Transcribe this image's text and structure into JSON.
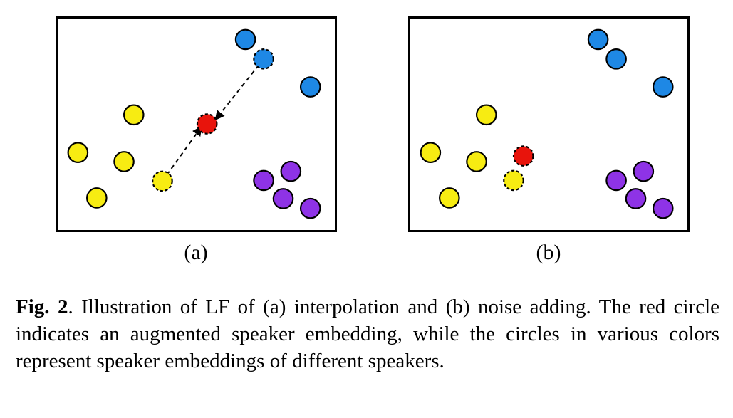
{
  "figure": {
    "panel_a_label": "(a)",
    "panel_b_label": "(b)",
    "caption_label": "Fig. 2",
    "caption_text": ". Illustration of LF of (a) interpolation and (b) noise adding. The red circle indicates an augmented speaker embedding, while the circles in various colors represent speaker embeddings of different speakers."
  },
  "colors": {
    "yellow": "#f7ec12",
    "blue": "#1e88e5",
    "purple": "#8e33e6",
    "red": "#e8140c"
  },
  "panels": [
    {
      "id": "a",
      "method": "interpolation",
      "embeddings": [
        {
          "name": "yellow-embedding-1",
          "color": "yellow",
          "style": "solid"
        },
        {
          "name": "yellow-embedding-2",
          "color": "yellow",
          "style": "solid"
        },
        {
          "name": "yellow-embedding-3",
          "color": "yellow",
          "style": "solid"
        },
        {
          "name": "yellow-embedding-4",
          "color": "yellow",
          "style": "solid"
        },
        {
          "name": "yellow-embedding-selected",
          "color": "yellow",
          "style": "dashed"
        },
        {
          "name": "blue-embedding-1",
          "color": "blue",
          "style": "solid"
        },
        {
          "name": "blue-embedding-selected",
          "color": "blue",
          "style": "dashed"
        },
        {
          "name": "blue-embedding-2",
          "color": "blue",
          "style": "solid"
        },
        {
          "name": "purple-embedding-1",
          "color": "purple",
          "style": "solid"
        },
        {
          "name": "purple-embedding-2",
          "color": "purple",
          "style": "solid"
        },
        {
          "name": "purple-embedding-3",
          "color": "purple",
          "style": "solid"
        },
        {
          "name": "purple-embedding-4",
          "color": "purple",
          "style": "solid"
        },
        {
          "name": "augmented-embedding",
          "color": "red",
          "style": "dashed"
        }
      ],
      "arrows": [
        {
          "name": "arrow-from-yellow",
          "style": "dashed"
        },
        {
          "name": "arrow-from-blue",
          "style": "dashed"
        }
      ]
    },
    {
      "id": "b",
      "method": "noise adding",
      "embeddings": [
        {
          "name": "yellow-embedding-1",
          "color": "yellow",
          "style": "solid"
        },
        {
          "name": "yellow-embedding-2",
          "color": "yellow",
          "style": "solid"
        },
        {
          "name": "yellow-embedding-3",
          "color": "yellow",
          "style": "solid"
        },
        {
          "name": "yellow-embedding-4",
          "color": "yellow",
          "style": "solid"
        },
        {
          "name": "yellow-embedding-selected",
          "color": "yellow",
          "style": "dashed"
        },
        {
          "name": "blue-embedding-1",
          "color": "blue",
          "style": "solid"
        },
        {
          "name": "blue-embedding-2",
          "color": "blue",
          "style": "solid"
        },
        {
          "name": "blue-embedding-3",
          "color": "blue",
          "style": "solid"
        },
        {
          "name": "purple-embedding-1",
          "color": "purple",
          "style": "solid"
        },
        {
          "name": "purple-embedding-2",
          "color": "purple",
          "style": "solid"
        },
        {
          "name": "purple-embedding-3",
          "color": "purple",
          "style": "solid"
        },
        {
          "name": "purple-embedding-4",
          "color": "purple",
          "style": "solid"
        },
        {
          "name": "augmented-embedding",
          "color": "red",
          "style": "dashed"
        }
      ],
      "arrows": []
    }
  ]
}
